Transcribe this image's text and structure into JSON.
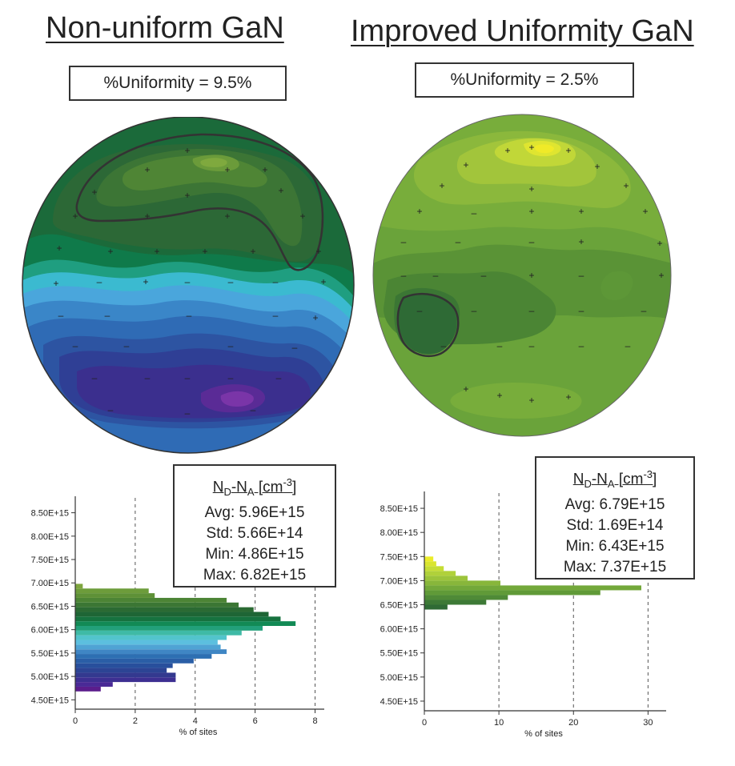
{
  "left": {
    "heading": "Non-uniform GaN",
    "uniformity": "%Uniformity = 9.5%",
    "stats": {
      "title_main": "N",
      "title_d": "D",
      "title_dash": "-N",
      "title_a": "A",
      "title_unit": " [cm",
      "title_exp": "-3",
      "title_close": "]",
      "avg": "Avg: 5.96E+15",
      "std": "Std: 5.66E+14",
      "min": "Min: 4.86E+15",
      "max": "Max: 6.82E+15"
    },
    "xlabel": "% of sites"
  },
  "right": {
    "heading": "Improved Uniformity GaN",
    "uniformity": "%Uniformity = 2.5%",
    "stats": {
      "title_main": "N",
      "title_d": "D",
      "title_dash": "-N",
      "title_a": "A",
      "title_unit": " [cm",
      "title_exp": "-3",
      "title_close": "]",
      "avg": "Avg: 6.79E+15",
      "std": "Std: 1.69E+14",
      "min": "Min: 6.43E+15",
      "max": "Max: 7.37E+15"
    },
    "xlabel": "% of sites"
  },
  "chart_data": [
    {
      "type": "bar",
      "orientation": "horizontal",
      "title": "Non-uniform GaN",
      "xlabel": "% of sites",
      "ylabel": "",
      "y_ticks": [
        "4.50E+15",
        "5.00E+15",
        "5.50E+15",
        "6.00E+15",
        "6.50E+15",
        "7.00E+15",
        "7.50E+15",
        "8.00E+15",
        "8.50E+15"
      ],
      "y_tick_values": [
        4.5,
        5.0,
        5.5,
        6.0,
        6.5,
        7.0,
        7.5,
        8.0,
        8.5
      ],
      "ylim": [
        4.3,
        8.75
      ],
      "x_ticks": [
        0,
        2,
        4,
        6,
        8
      ],
      "xlim": [
        0,
        8.2
      ],
      "grid_x": [
        2,
        4,
        6,
        8
      ],
      "bins": [
        {
          "y": 4.73,
          "value": 0.85,
          "color": "#5b1d8c"
        },
        {
          "y": 4.83,
          "value": 1.25,
          "color": "#4a2a96"
        },
        {
          "y": 4.93,
          "value": 3.35,
          "color": "#3d2f92"
        },
        {
          "y": 5.03,
          "value": 3.35,
          "color": "#33398f"
        },
        {
          "y": 5.13,
          "value": 3.05,
          "color": "#2c4494"
        },
        {
          "y": 5.23,
          "value": 3.25,
          "color": "#284f9c"
        },
        {
          "y": 5.33,
          "value": 3.95,
          "color": "#2a5ea6"
        },
        {
          "y": 5.43,
          "value": 4.55,
          "color": "#2d6fb2"
        },
        {
          "y": 5.53,
          "value": 5.05,
          "color": "#3f86c4"
        },
        {
          "y": 5.63,
          "value": 4.85,
          "color": "#4fa3d4"
        },
        {
          "y": 5.73,
          "value": 4.75,
          "color": "#5cbfdf"
        },
        {
          "y": 5.83,
          "value": 5.05,
          "color": "#52c4cc"
        },
        {
          "y": 5.93,
          "value": 5.55,
          "color": "#3fbaa6"
        },
        {
          "y": 6.03,
          "value": 6.25,
          "color": "#22a07a"
        },
        {
          "y": 6.13,
          "value": 7.35,
          "color": "#128a55"
        },
        {
          "y": 6.23,
          "value": 6.85,
          "color": "#16723f"
        },
        {
          "y": 6.33,
          "value": 6.45,
          "color": "#1e6535"
        },
        {
          "y": 6.43,
          "value": 5.95,
          "color": "#2b6a33"
        },
        {
          "y": 6.53,
          "value": 5.45,
          "color": "#3b7634"
        },
        {
          "y": 6.63,
          "value": 5.05,
          "color": "#4c8435"
        },
        {
          "y": 6.73,
          "value": 2.65,
          "color": "#5e9137"
        },
        {
          "y": 6.83,
          "value": 2.45,
          "color": "#6d9c3b"
        },
        {
          "y": 6.93,
          "value": 0.25,
          "color": "#7ea53e"
        }
      ]
    },
    {
      "type": "bar",
      "orientation": "horizontal",
      "title": "Improved Uniformity GaN",
      "xlabel": "% of sites",
      "ylabel": "",
      "y_ticks": [
        "4.50E+15",
        "5.00E+15",
        "5.50E+15",
        "6.00E+15",
        "6.50E+15",
        "7.00E+15",
        "7.50E+15",
        "8.00E+15",
        "8.50E+15"
      ],
      "y_tick_values": [
        4.5,
        5.0,
        5.5,
        6.0,
        6.5,
        7.0,
        7.5,
        8.0,
        8.5
      ],
      "ylim": [
        4.3,
        8.75
      ],
      "x_ticks": [
        0,
        10,
        20,
        30
      ],
      "xlim": [
        0,
        32
      ],
      "grid_x": [
        10,
        20,
        30
      ],
      "bins": [
        {
          "y": 6.45,
          "value": 3.1,
          "color": "#2f6a35"
        },
        {
          "y": 6.55,
          "value": 8.3,
          "color": "#3d7936"
        },
        {
          "y": 6.65,
          "value": 11.2,
          "color": "#4f8a37"
        },
        {
          "y": 6.75,
          "value": 23.6,
          "color": "#609a38"
        },
        {
          "y": 6.85,
          "value": 29.1,
          "color": "#73a83a"
        },
        {
          "y": 6.95,
          "value": 10.2,
          "color": "#88b63b"
        },
        {
          "y": 7.05,
          "value": 5.8,
          "color": "#9cc43b"
        },
        {
          "y": 7.15,
          "value": 4.2,
          "color": "#b0d13a"
        },
        {
          "y": 7.25,
          "value": 2.6,
          "color": "#c5dd35"
        },
        {
          "y": 7.35,
          "value": 1.6,
          "color": "#d9e52f"
        },
        {
          "y": 7.45,
          "value": 1.2,
          "color": "#ebec2a"
        }
      ]
    }
  ]
}
